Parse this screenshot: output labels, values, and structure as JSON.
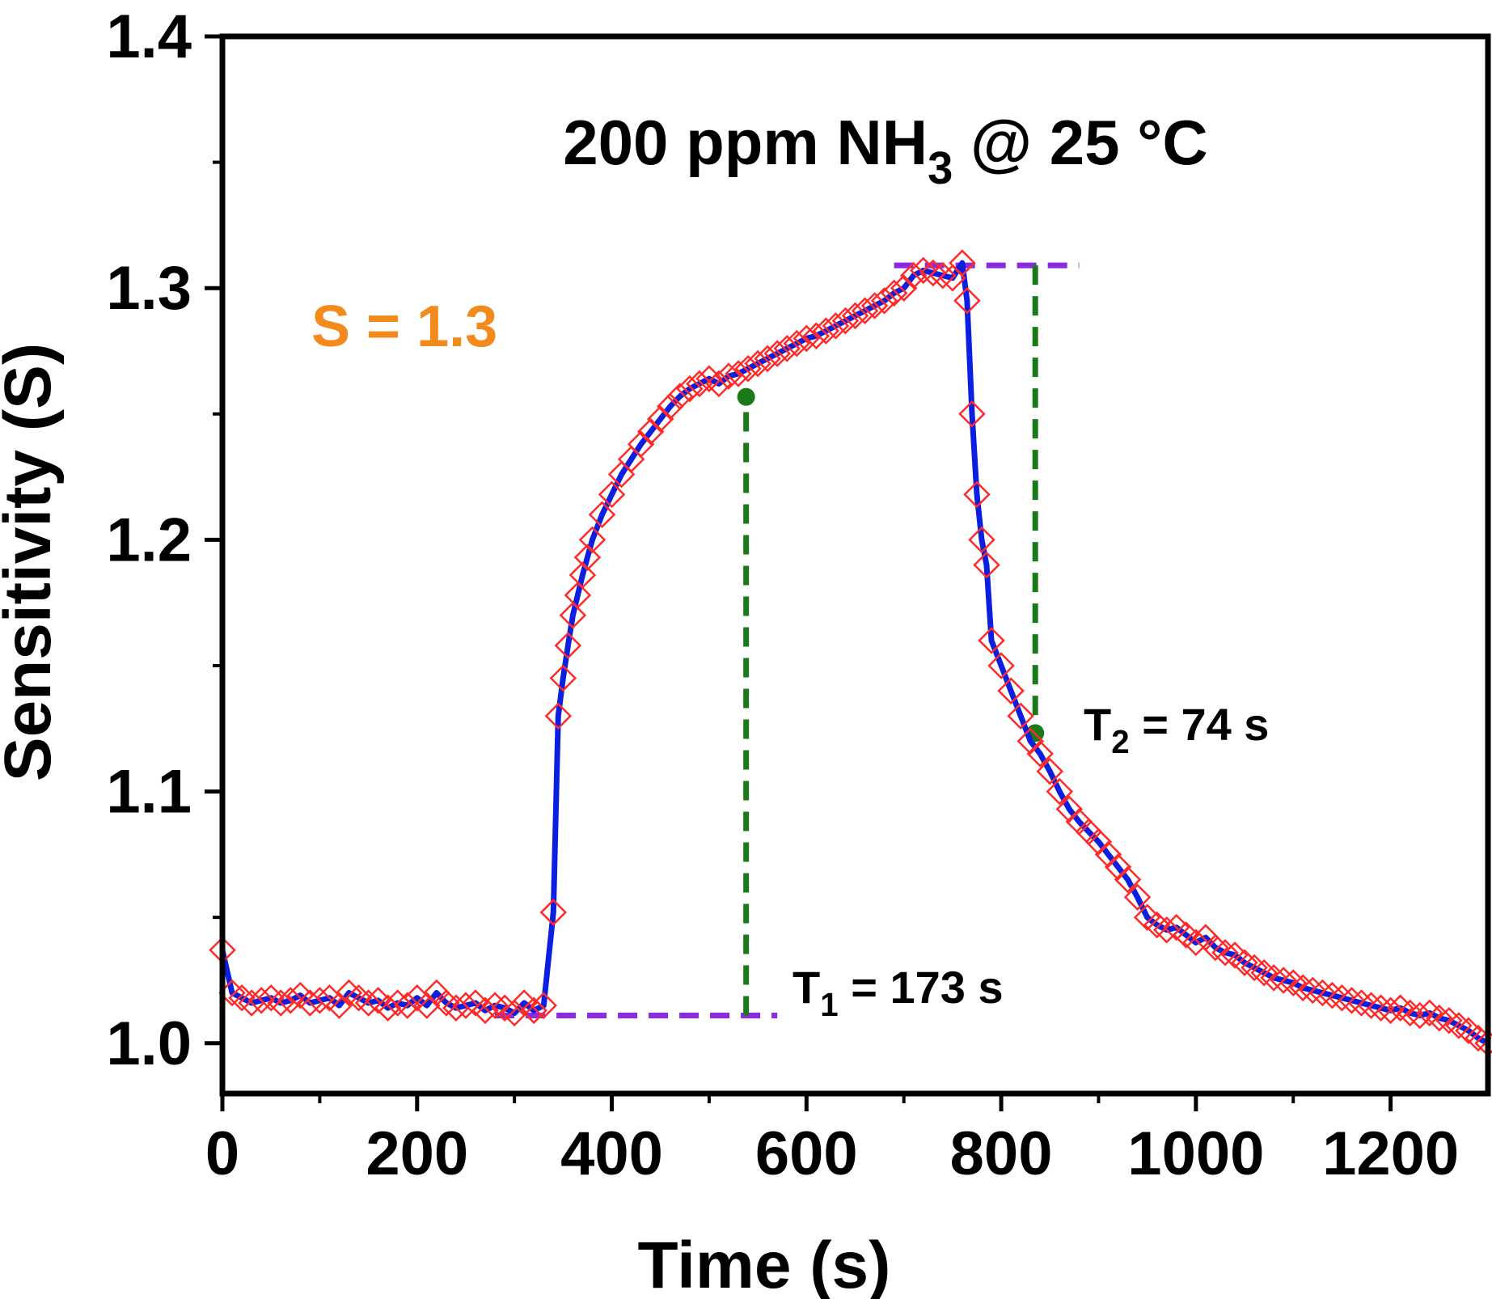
{
  "chart_data": {
    "type": "scatter",
    "title_main": "200 ppm NH",
    "title_sub": "3",
    "title_tail": " @ 25 °C",
    "xlabel": "Time (s)",
    "ylabel": "Sensitivity (S)",
    "xlim": [
      0,
      1300
    ],
    "ylim": [
      0.98,
      1.4
    ],
    "x_ticks": [
      0,
      200,
      400,
      600,
      800,
      1000,
      1200
    ],
    "y_ticks": [
      1.0,
      1.1,
      1.2,
      1.3,
      1.4
    ],
    "annotations": {
      "sensitivity": "S = 1.3",
      "t1_prefix": "T",
      "t1_sub": "1",
      "t1_text": " = 173 s",
      "t2_prefix": "T",
      "t2_sub": "2",
      "t2_text": " = 74 s"
    },
    "reference_lines": {
      "baseline": {
        "y": 1.011,
        "x_start": 280,
        "x_end": 570
      },
      "peak": {
        "y": 1.309,
        "x_start": 690,
        "x_end": 880
      },
      "response_drop": {
        "x": 538,
        "y_start": 1.011,
        "y_end": 1.26
      },
      "recovery_drop": {
        "x": 835,
        "y_start": 1.309,
        "y_end": 1.12
      }
    },
    "colors": {
      "markers": "#ff2a2a",
      "trace": "#0a1fe0",
      "baseline_dash": "#8a2be2",
      "drop_dash": "#1a7a1a",
      "sensitivity_text": "#f28a1c"
    },
    "series": [
      {
        "name": "Sensitivity",
        "x": [
          0,
          10,
          20,
          30,
          40,
          50,
          60,
          70,
          80,
          90,
          100,
          110,
          120,
          130,
          140,
          150,
          160,
          170,
          180,
          190,
          200,
          210,
          220,
          230,
          240,
          250,
          260,
          270,
          280,
          290,
          300,
          310,
          320,
          330,
          340,
          345,
          350,
          355,
          360,
          365,
          370,
          375,
          380,
          390,
          400,
          410,
          420,
          430,
          440,
          450,
          460,
          470,
          480,
          490,
          500,
          510,
          520,
          530,
          540,
          550,
          560,
          570,
          580,
          590,
          600,
          610,
          620,
          630,
          640,
          650,
          660,
          670,
          680,
          690,
          700,
          710,
          720,
          730,
          740,
          750,
          760,
          765,
          770,
          775,
          780,
          785,
          790,
          800,
          810,
          820,
          830,
          840,
          850,
          860,
          870,
          880,
          890,
          900,
          910,
          920,
          930,
          940,
          950,
          960,
          970,
          980,
          990,
          1000,
          1010,
          1020,
          1030,
          1040,
          1050,
          1060,
          1070,
          1080,
          1090,
          1100,
          1110,
          1120,
          1130,
          1140,
          1150,
          1160,
          1170,
          1180,
          1190,
          1200,
          1210,
          1220,
          1230,
          1240,
          1250,
          1260,
          1270,
          1280,
          1290,
          1300
        ],
        "y": [
          1.037,
          1.02,
          1.018,
          1.016,
          1.017,
          1.018,
          1.016,
          1.017,
          1.019,
          1.016,
          1.017,
          1.018,
          1.015,
          1.02,
          1.018,
          1.016,
          1.017,
          1.014,
          1.016,
          1.015,
          1.018,
          1.015,
          1.02,
          1.016,
          1.014,
          1.015,
          1.016,
          1.013,
          1.015,
          1.014,
          1.012,
          1.016,
          1.013,
          1.015,
          1.052,
          1.13,
          1.145,
          1.158,
          1.17,
          1.178,
          1.186,
          1.193,
          1.2,
          1.21,
          1.218,
          1.226,
          1.232,
          1.238,
          1.243,
          1.248,
          1.253,
          1.257,
          1.26,
          1.262,
          1.264,
          1.262,
          1.265,
          1.266,
          1.268,
          1.27,
          1.272,
          1.274,
          1.276,
          1.278,
          1.28,
          1.281,
          1.283,
          1.285,
          1.287,
          1.289,
          1.291,
          1.293,
          1.295,
          1.298,
          1.3,
          1.305,
          1.307,
          1.306,
          1.305,
          1.304,
          1.31,
          1.295,
          1.25,
          1.218,
          1.2,
          1.19,
          1.16,
          1.15,
          1.14,
          1.13,
          1.12,
          1.115,
          1.108,
          1.1,
          1.093,
          1.088,
          1.084,
          1.08,
          1.075,
          1.07,
          1.065,
          1.058,
          1.05,
          1.047,
          1.045,
          1.046,
          1.043,
          1.04,
          1.042,
          1.038,
          1.036,
          1.035,
          1.032,
          1.03,
          1.028,
          1.026,
          1.025,
          1.024,
          1.022,
          1.021,
          1.02,
          1.019,
          1.018,
          1.017,
          1.016,
          1.015,
          1.014,
          1.013,
          1.014,
          1.012,
          1.011,
          1.012,
          1.01,
          1.009,
          1.007,
          1.005,
          1.002,
          1.0
        ]
      }
    ]
  }
}
